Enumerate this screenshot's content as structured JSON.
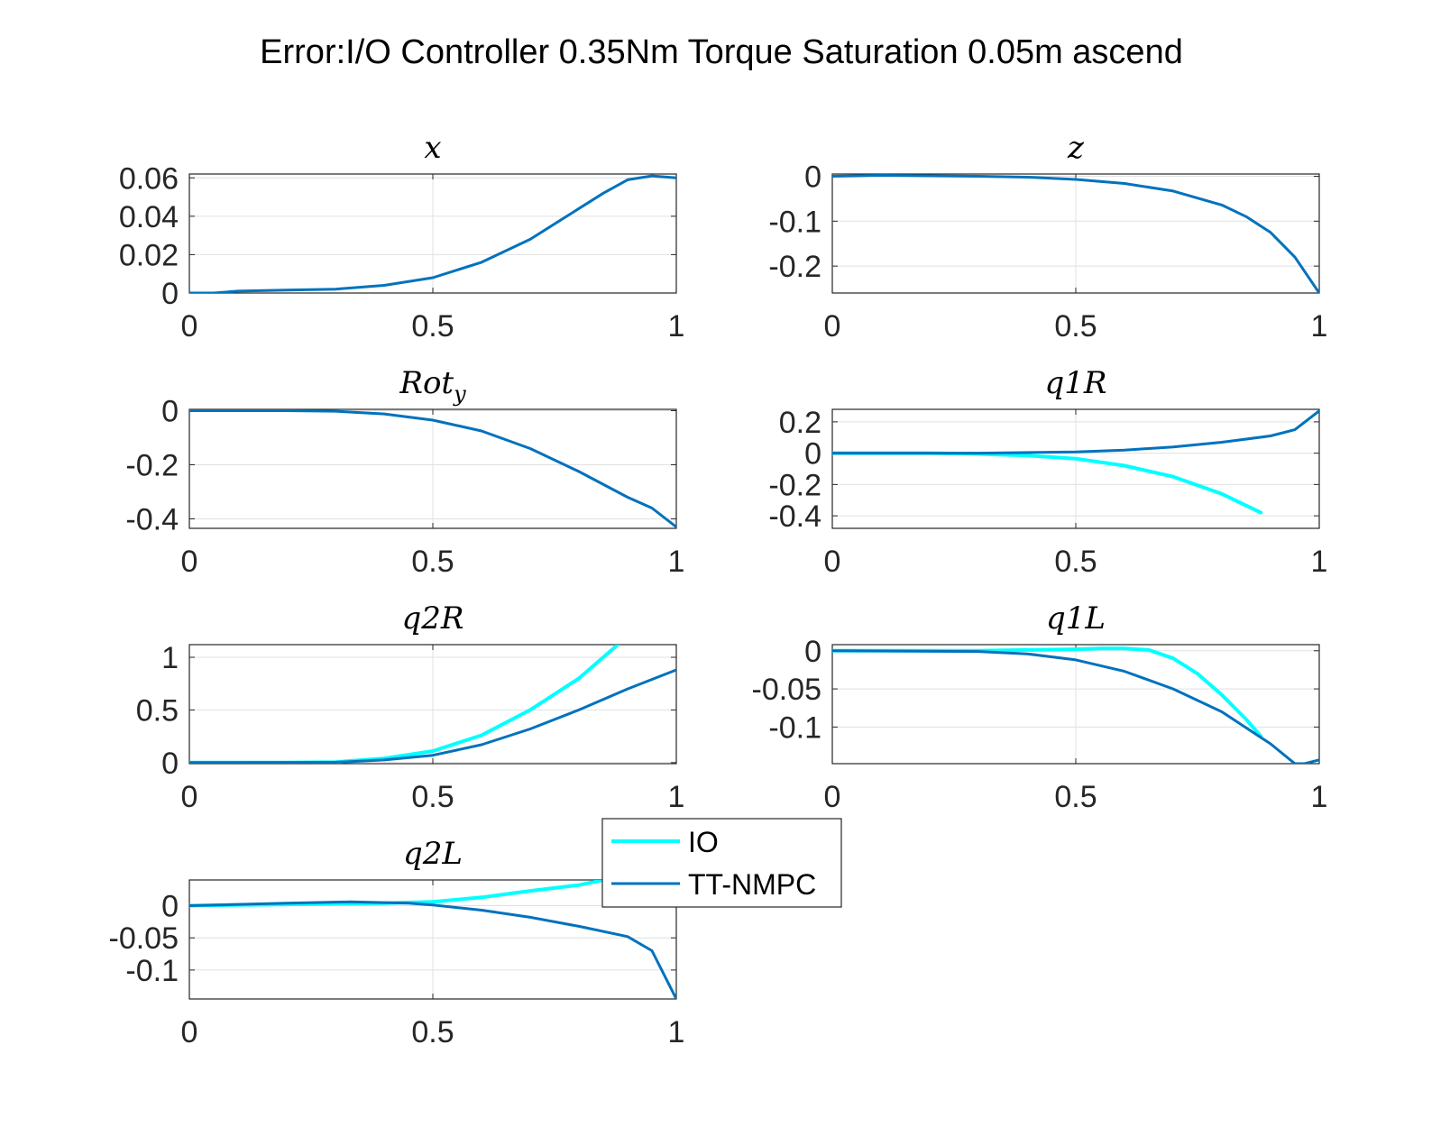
{
  "figure_title": "Error:I/O Controller 0.35Nm Torque Saturation 0.05m ascend",
  "legend": {
    "entries": [
      {
        "label": "IO",
        "color": "#00ffff"
      },
      {
        "label": "TT-NMPC",
        "color": "#0072bd"
      }
    ]
  },
  "chart_data": [
    {
      "type": "line",
      "id": "x",
      "title": "x",
      "xlim": [
        0,
        1
      ],
      "ylim": [
        0,
        0.062
      ],
      "xticks": [
        0,
        0.5,
        1
      ],
      "xtick_labels": [
        "0",
        "0.5",
        "1"
      ],
      "yticks": [
        0,
        0.02,
        0.04,
        0.06
      ],
      "ytick_labels": [
        "0",
        "0.02",
        "0.04",
        "0.06"
      ],
      "grid": true,
      "series": [
        {
          "name": "TT-NMPC",
          "color": "#0072bd",
          "x": [
            0,
            0.05,
            0.1,
            0.2,
            0.3,
            0.4,
            0.5,
            0.6,
            0.7,
            0.8,
            0.85,
            0.9,
            0.95,
            1.0
          ],
          "y": [
            0,
            0,
            0.001,
            0.0015,
            0.002,
            0.004,
            0.008,
            0.016,
            0.028,
            0.044,
            0.052,
            0.059,
            0.061,
            0.06
          ]
        }
      ]
    },
    {
      "type": "line",
      "id": "z",
      "title": "z",
      "xlim": [
        0,
        1
      ],
      "ylim": [
        -0.26,
        0.005
      ],
      "xticks": [
        0,
        0.5,
        1
      ],
      "xtick_labels": [
        "0",
        "0.5",
        "1"
      ],
      "yticks": [
        -0.2,
        -0.1,
        0
      ],
      "ytick_labels": [
        "-0.2",
        "-0.1",
        "0"
      ],
      "grid": true,
      "series": [
        {
          "name": "TT-NMPC",
          "color": "#0072bd",
          "x": [
            0,
            0.1,
            0.2,
            0.3,
            0.4,
            0.5,
            0.6,
            0.7,
            0.8,
            0.85,
            0.9,
            0.95,
            1.0
          ],
          "y": [
            0,
            0.002,
            0.001,
            0,
            -0.002,
            -0.007,
            -0.016,
            -0.033,
            -0.064,
            -0.09,
            -0.125,
            -0.18,
            -0.26
          ]
        }
      ]
    },
    {
      "type": "line",
      "id": "roty",
      "title": "Rot",
      "title_sub": "y",
      "xlim": [
        0,
        1
      ],
      "ylim": [
        -0.435,
        0.005
      ],
      "xticks": [
        0,
        0.5,
        1
      ],
      "xtick_labels": [
        "0",
        "0.5",
        "1"
      ],
      "yticks": [
        -0.4,
        -0.2,
        0
      ],
      "ytick_labels": [
        "-0.4",
        "-0.2",
        "0"
      ],
      "grid": true,
      "series": [
        {
          "name": "TT-NMPC",
          "color": "#0072bd",
          "x": [
            0,
            0.2,
            0.3,
            0.4,
            0.5,
            0.6,
            0.7,
            0.8,
            0.9,
            0.95,
            1.0
          ],
          "y": [
            0,
            0,
            -0.002,
            -0.012,
            -0.035,
            -0.075,
            -0.14,
            -0.225,
            -0.32,
            -0.36,
            -0.43
          ]
        }
      ]
    },
    {
      "type": "line",
      "id": "q1R",
      "title": "q1R",
      "xlim": [
        0,
        1
      ],
      "ylim": [
        -0.48,
        0.28
      ],
      "xticks": [
        0,
        0.5,
        1
      ],
      "xtick_labels": [
        "0",
        "0.5",
        "1"
      ],
      "yticks": [
        -0.4,
        -0.2,
        0,
        0.2
      ],
      "ytick_labels": [
        "-0.4",
        "-0.2",
        "0",
        "0.2"
      ],
      "grid": true,
      "series": [
        {
          "name": "IO",
          "color": "#00ffff",
          "x": [
            0,
            0.2,
            0.3,
            0.4,
            0.5,
            0.6,
            0.7,
            0.8,
            0.88
          ],
          "y": [
            0,
            0,
            -0.005,
            -0.015,
            -0.035,
            -0.08,
            -0.15,
            -0.26,
            -0.38
          ]
        },
        {
          "name": "TT-NMPC",
          "color": "#0072bd",
          "x": [
            0,
            0.3,
            0.5,
            0.6,
            0.7,
            0.8,
            0.9,
            0.95,
            1.0
          ],
          "y": [
            0,
            0,
            0.008,
            0.02,
            0.04,
            0.07,
            0.11,
            0.15,
            0.27
          ]
        }
      ]
    },
    {
      "type": "line",
      "id": "q2R",
      "title": "q2R",
      "xlim": [
        0,
        1
      ],
      "ylim": [
        -0.01,
        1.12
      ],
      "xticks": [
        0,
        0.5,
        1
      ],
      "xtick_labels": [
        "0",
        "0.5",
        "1"
      ],
      "yticks": [
        0,
        0.5,
        1
      ],
      "ytick_labels": [
        "0",
        "0.5",
        "1"
      ],
      "grid": true,
      "series": [
        {
          "name": "IO",
          "color": "#00ffff",
          "x": [
            0,
            0.2,
            0.3,
            0.4,
            0.5,
            0.6,
            0.7,
            0.8,
            0.88
          ],
          "y": [
            0,
            0,
            0.005,
            0.04,
            0.11,
            0.26,
            0.5,
            0.8,
            1.12
          ]
        },
        {
          "name": "TT-NMPC",
          "color": "#0072bd",
          "x": [
            0,
            0.3,
            0.4,
            0.5,
            0.6,
            0.7,
            0.8,
            0.9,
            1.0
          ],
          "y": [
            0,
            0.003,
            0.025,
            0.07,
            0.17,
            0.32,
            0.5,
            0.7,
            0.88
          ]
        }
      ]
    },
    {
      "type": "line",
      "id": "q1L",
      "title": "q1L",
      "xlim": [
        0,
        1
      ],
      "ylim": [
        -0.148,
        0.008
      ],
      "xticks": [
        0,
        0.5,
        1
      ],
      "xtick_labels": [
        "0",
        "0.5",
        "1"
      ],
      "yticks": [
        -0.1,
        -0.05,
        0
      ],
      "ytick_labels": [
        "-0.1",
        "-0.05",
        "0"
      ],
      "grid": true,
      "series": [
        {
          "name": "IO",
          "color": "#00ffff",
          "x": [
            0,
            0.3,
            0.4,
            0.5,
            0.55,
            0.6,
            0.65,
            0.7,
            0.75,
            0.8,
            0.85,
            0.88
          ],
          "y": [
            0,
            0,
            0.001,
            0.002,
            0.003,
            0.003,
            0.001,
            -0.01,
            -0.03,
            -0.058,
            -0.09,
            -0.112
          ]
        },
        {
          "name": "TT-NMPC",
          "color": "#0072bd",
          "x": [
            0,
            0.3,
            0.4,
            0.5,
            0.6,
            0.7,
            0.8,
            0.9,
            0.95,
            0.97,
            1.0
          ],
          "y": [
            0,
            -0.001,
            -0.004,
            -0.012,
            -0.027,
            -0.05,
            -0.08,
            -0.122,
            -0.148,
            -0.148,
            -0.143
          ]
        }
      ]
    },
    {
      "type": "line",
      "id": "q2L",
      "title": "q2L",
      "xlim": [
        0,
        1
      ],
      "ylim": [
        -0.145,
        0.04
      ],
      "xticks": [
        0,
        0.5,
        1
      ],
      "xtick_labels": [
        "0",
        "0.5",
        "1"
      ],
      "yticks": [
        -0.1,
        -0.05,
        0
      ],
      "ytick_labels": [
        "-0.1",
        "-0.05",
        "0"
      ],
      "grid": true,
      "series": [
        {
          "name": "IO",
          "color": "#00ffff",
          "x": [
            0,
            0.2,
            0.4,
            0.5,
            0.6,
            0.7,
            0.8,
            0.85
          ],
          "y": [
            0,
            0.002,
            0.004,
            0.006,
            0.013,
            0.023,
            0.032,
            0.04
          ]
        },
        {
          "name": "TT-NMPC",
          "color": "#0072bd",
          "x": [
            0,
            0.2,
            0.33,
            0.45,
            0.5,
            0.6,
            0.7,
            0.8,
            0.9,
            0.95,
            1.0
          ],
          "y": [
            0,
            0.004,
            0.006,
            0.004,
            0.001,
            -0.007,
            -0.018,
            -0.032,
            -0.048,
            -0.07,
            -0.145
          ]
        }
      ]
    }
  ]
}
